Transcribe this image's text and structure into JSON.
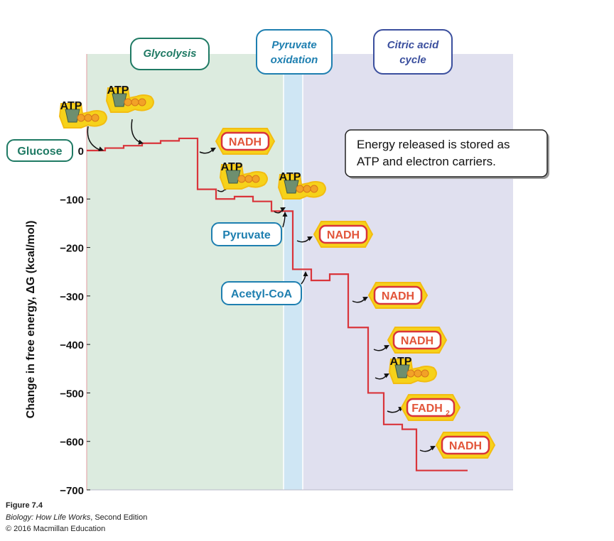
{
  "chart_data": {
    "type": "line",
    "xlabel": "",
    "ylabel": "Change in free energy, ΔG (kcal/mol)",
    "ylim": [
      -700,
      0
    ],
    "y_ticks": [
      "0",
      "−100",
      "−200",
      "−300",
      "−400",
      "−500",
      "−600",
      "−700"
    ],
    "y_tick_values": [
      0,
      -100,
      -200,
      -300,
      -400,
      -500,
      -600,
      -700
    ],
    "grid": false,
    "regions": [
      {
        "name": "Glycolysis",
        "color": "#dcebdf",
        "label_color": "#1f7a64"
      },
      {
        "name": "Pyruvate oxidation",
        "label_lines": [
          "Pyruvate",
          "oxidation"
        ],
        "color": "#cfe6f4",
        "label_color": "#1e7fb0"
      },
      {
        "name": "Citric acid cycle",
        "label_lines": [
          "Citric acid",
          "cycle"
        ],
        "color": "#e0e0ef",
        "label_color": "#3b4f9e"
      }
    ],
    "series": [
      {
        "color": "#d9353b",
        "x": [
          0,
          1,
          2,
          3,
          4,
          5,
          6,
          7,
          8,
          9,
          10,
          11,
          12,
          13,
          14,
          15,
          16,
          17,
          18
        ],
        "values": [
          0,
          5,
          10,
          15,
          20,
          25,
          -80,
          -100,
          -95,
          -105,
          -125,
          -245,
          -268,
          -255,
          -365,
          -500,
          -565,
          -575,
          -660
        ]
      }
    ],
    "molecule_labels": {
      "glucose": "Glucose",
      "pyruvate": "Pyruvate",
      "acetyl_coa": "Acetyl-CoA",
      "atp": "ATP",
      "nadh": "NADH",
      "fadh2_main": "FADH",
      "fadh2_sub": "2"
    },
    "annotation": [
      "Energy released is stored as",
      "ATP and electron carriers."
    ]
  },
  "caption": {
    "figure": "Figure 7.4",
    "book_title": "Biology: How Life Works",
    "book_rest": ", Second Edition",
    "copyright": "© 2016 Macmillan Education"
  }
}
